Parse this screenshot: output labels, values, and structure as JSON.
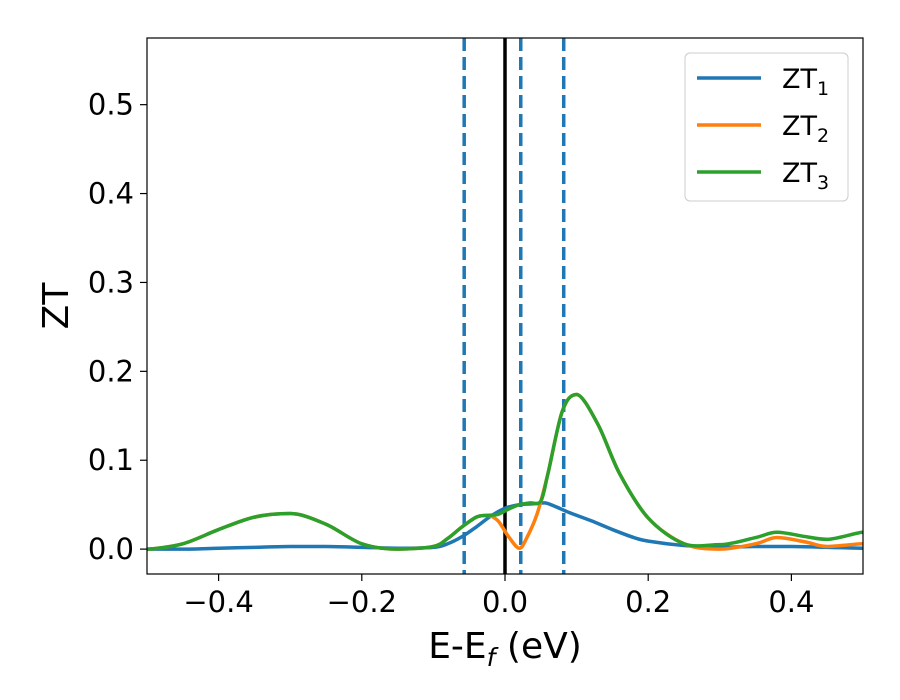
{
  "chart_data": {
    "type": "line",
    "xlabel": "E-E",
    "xlabel_sub": "f",
    "xlabel_unit": " (eV)",
    "ylabel": "ZT",
    "xlim": [
      -0.5,
      0.5
    ],
    "ylim": [
      -0.028,
      0.575
    ],
    "xticks": [
      -0.4,
      -0.2,
      0.0,
      0.2,
      0.4
    ],
    "xtick_labels": [
      "−0.4",
      "−0.2",
      "0.0",
      "0.2",
      "0.4"
    ],
    "yticks": [
      0.0,
      0.1,
      0.2,
      0.3,
      0.4,
      0.5
    ],
    "ytick_labels": [
      "0.0",
      "0.1",
      "0.2",
      "0.3",
      "0.4",
      "0.5"
    ],
    "grid": false,
    "legend_position": "top-right",
    "vertical_lines": [
      {
        "x": -0.057,
        "style": "dashed",
        "color": "#1f77b4"
      },
      {
        "x": 0.0,
        "style": "solid",
        "color": "#000000"
      },
      {
        "x": 0.022,
        "style": "dashed",
        "color": "#1f77b4"
      },
      {
        "x": 0.082,
        "style": "dashed",
        "color": "#1f77b4"
      }
    ],
    "series": [
      {
        "name": "ZT",
        "name_sub": "1",
        "color": "#1f77b4",
        "x": [
          -0.5,
          -0.45,
          -0.4,
          -0.35,
          -0.3,
          -0.25,
          -0.2,
          -0.15,
          -0.1,
          -0.08,
          -0.06,
          -0.04,
          -0.02,
          0.0,
          0.02,
          0.04,
          0.055,
          0.07,
          0.09,
          0.12,
          0.15,
          0.18,
          0.2,
          0.25,
          0.3,
          0.35,
          0.4,
          0.45,
          0.5
        ],
        "y": [
          0.0,
          0.0,
          0.001,
          0.002,
          0.003,
          0.003,
          0.002,
          0.001,
          0.002,
          0.006,
          0.014,
          0.025,
          0.037,
          0.046,
          0.05,
          0.051,
          0.052,
          0.048,
          0.041,
          0.032,
          0.022,
          0.013,
          0.009,
          0.004,
          0.002,
          0.003,
          0.003,
          0.002,
          0.001
        ]
      },
      {
        "name": "ZT",
        "name_sub": "2",
        "color": "#ff7f0e",
        "x": [
          -0.5,
          -0.45,
          -0.4,
          -0.35,
          -0.3,
          -0.25,
          -0.2,
          -0.15,
          -0.1,
          -0.08,
          -0.06,
          -0.04,
          -0.025,
          -0.01,
          0.005,
          0.02,
          0.03,
          0.045,
          0.06,
          0.08,
          0.1,
          0.13,
          0.16,
          0.2,
          0.25,
          0.3,
          0.35,
          0.38,
          0.42,
          0.45,
          0.5
        ],
        "y": [
          0.0,
          0.006,
          0.022,
          0.036,
          0.04,
          0.028,
          0.006,
          0.0,
          0.003,
          0.012,
          0.025,
          0.036,
          0.038,
          0.032,
          0.014,
          0.001,
          0.012,
          0.04,
          0.085,
          0.155,
          0.174,
          0.14,
          0.085,
          0.035,
          0.006,
          0.0,
          0.006,
          0.013,
          0.008,
          0.003,
          0.006
        ]
      },
      {
        "name": "ZT",
        "name_sub": "3",
        "color": "#2ca02c",
        "x": [
          -0.5,
          -0.45,
          -0.4,
          -0.35,
          -0.3,
          -0.25,
          -0.2,
          -0.15,
          -0.1,
          -0.08,
          -0.06,
          -0.04,
          -0.025,
          -0.01,
          0.005,
          0.02,
          0.035,
          0.05,
          0.06,
          0.08,
          0.1,
          0.13,
          0.16,
          0.2,
          0.25,
          0.3,
          0.35,
          0.38,
          0.42,
          0.45,
          0.5
        ],
        "y": [
          0.0,
          0.006,
          0.022,
          0.036,
          0.04,
          0.028,
          0.006,
          0.0,
          0.003,
          0.012,
          0.025,
          0.036,
          0.038,
          0.039,
          0.045,
          0.05,
          0.052,
          0.054,
          0.085,
          0.155,
          0.174,
          0.14,
          0.085,
          0.035,
          0.006,
          0.005,
          0.013,
          0.019,
          0.014,
          0.011,
          0.019
        ]
      }
    ]
  }
}
